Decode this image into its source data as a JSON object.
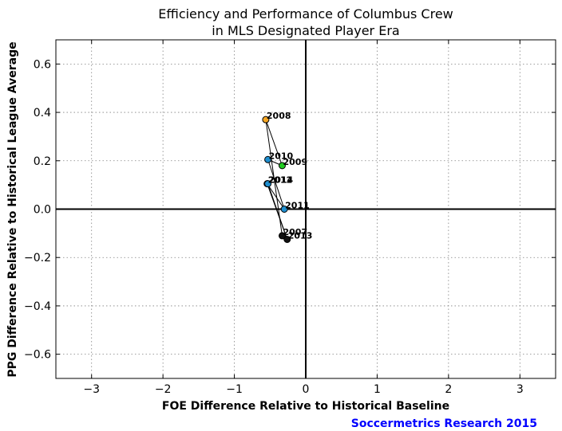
{
  "chart_data": {
    "type": "scatter",
    "title_line1": "Efficiency and Performance of Columbus Crew",
    "title_line2": "in MLS Designated Player Era",
    "xlabel": "FOE Difference Relative to Historical Baseline",
    "ylabel": "PPG Difference Relative to Historical League Average",
    "credit": "Soccermetrics Research 2015",
    "xlim": [
      -3.5,
      3.5
    ],
    "ylim": [
      -0.7,
      0.7
    ],
    "xticks": [
      -3,
      -2,
      -1,
      0,
      1,
      2,
      3
    ],
    "xtick_labels": [
      "−3",
      "−2",
      "−1",
      "0",
      "1",
      "2",
      "3"
    ],
    "yticks": [
      -0.6,
      -0.4,
      -0.2,
      0.0,
      0.2,
      0.4,
      0.6
    ],
    "ytick_labels": [
      "−0.6",
      "−0.4",
      "−0.2",
      "0.0",
      "0.2",
      "0.4",
      "0.6"
    ],
    "grid": true,
    "points": [
      {
        "label": "2007",
        "x": -0.33,
        "y": -0.11,
        "color": "#111111"
      },
      {
        "label": "2008",
        "x": -0.56,
        "y": 0.37,
        "color": "#f5a623"
      },
      {
        "label": "2009",
        "x": -0.33,
        "y": 0.18,
        "color": "#22cc22"
      },
      {
        "label": "2010",
        "x": -0.53,
        "y": 0.205,
        "color": "#1f8fd0"
      },
      {
        "label": "2011",
        "x": -0.3,
        "y": 0.0,
        "color": "#1f8fd0"
      },
      {
        "label": "2012",
        "x": -0.54,
        "y": 0.105,
        "color": "#1a4f8a"
      },
      {
        "label": "2013",
        "x": -0.26,
        "y": -0.125,
        "color": "#111111"
      },
      {
        "label": "2014",
        "x": -0.53,
        "y": 0.105,
        "color": "#1f8fd0"
      }
    ]
  }
}
